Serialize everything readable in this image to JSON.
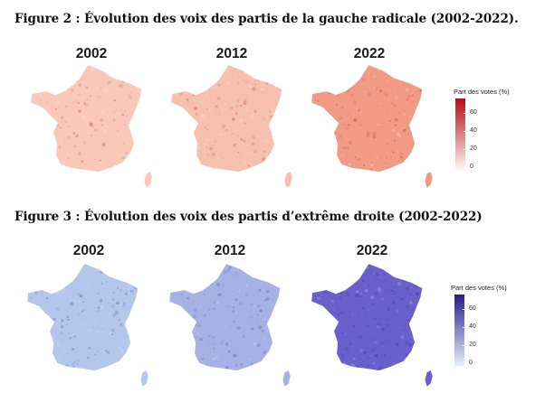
{
  "figures": [
    {
      "title": "Figure 2 : Évolution des voix des partis de la gauche radicale (2002-2022).",
      "years": [
        "2002",
        "2012",
        "2022"
      ],
      "legend": {
        "title": "Part des votes (%)",
        "ticks": [
          "60",
          "40",
          "20",
          "0"
        ]
      },
      "colors": {
        "low": "#fff5f0",
        "high": "#b40d14",
        "map_fills": [
          "#f9c8b8",
          "#f7c0ae",
          "#f19a86"
        ]
      },
      "map_levels": [
        0.22,
        0.2,
        0.34
      ]
    },
    {
      "title": "Figure 3 : Évolution des voix des partis d’extrême droite (2002-2022)",
      "years": [
        "2002",
        "2012",
        "2022"
      ],
      "legend": {
        "title": "Part des votes (%)",
        "ticks": [
          "60",
          "40",
          "20",
          "0"
        ]
      },
      "colors": {
        "low": "#e4f1fc",
        "high": "#2a1a86",
        "map_fills": [
          "#b4c7ea",
          "#a7b2e4",
          "#6b5fcb"
        ]
      },
      "map_levels": [
        0.22,
        0.28,
        0.45
      ]
    }
  ]
}
